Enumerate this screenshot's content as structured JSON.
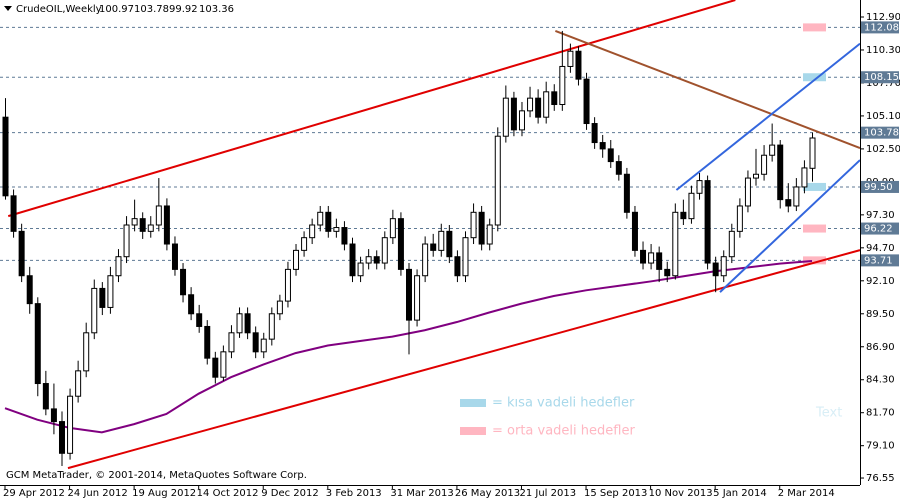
{
  "chart_data": {
    "type": "candlestick",
    "title": "CrudeOIL,Weekly",
    "footer": "GCM MetaTrader, © 2001-2014, MetaQuotes Software Corp.",
    "categories": [
      "29 Apr 2012",
      null,
      null,
      null,
      null,
      null,
      null,
      null,
      "24 Jun 2012",
      null,
      null,
      null,
      null,
      null,
      null,
      null,
      "19 Aug 2012",
      null,
      null,
      null,
      null,
      null,
      null,
      null,
      "14 Oct 2012",
      null,
      null,
      null,
      null,
      null,
      null,
      null,
      "9 Dec 2012",
      null,
      null,
      null,
      null,
      null,
      null,
      null,
      "3 Feb 2013",
      null,
      null,
      null,
      null,
      null,
      null,
      null,
      "31 Mar 2013",
      null,
      null,
      null,
      null,
      null,
      null,
      null,
      "26 May 2013",
      null,
      null,
      null,
      null,
      null,
      null,
      null,
      "21 Jul 2013",
      null,
      null,
      null,
      null,
      null,
      null,
      null,
      "15 Sep 2013",
      null,
      null,
      null,
      null,
      null,
      null,
      null,
      "10 Nov 2013",
      null,
      null,
      null,
      null,
      null,
      null,
      null,
      "5 Jan 2014",
      null,
      null,
      null,
      null,
      null,
      null,
      null,
      "2 Mar 2014",
      null,
      null,
      null,
      null
    ],
    "open": [
      105.0,
      98.8,
      96.0,
      92.5,
      90.3,
      84.0,
      82.0,
      81.0,
      78.5,
      83.0,
      85.0,
      88.0,
      91.5,
      90.0,
      92.5,
      94.0,
      96.5,
      97.0,
      96.0,
      96.5,
      98.0,
      95.0,
      93.0,
      91.0,
      89.5,
      88.5,
      86.0,
      84.5,
      86.5,
      88.0,
      89.5,
      88.0,
      86.5,
      87.5,
      89.5,
      90.5,
      93.0,
      94.5,
      95.5,
      96.5,
      97.5,
      96.0,
      96.3,
      95.0,
      92.5,
      93.5,
      94.0,
      93.5,
      95.5,
      97.0,
      93.0,
      89.0,
      92.5,
      95.0,
      94.5,
      96.0,
      94.0,
      92.5,
      95.5,
      97.5,
      95.0,
      96.5,
      103.5,
      106.5,
      104.0,
      105.5,
      106.5,
      105.0,
      107.0,
      106.0,
      109.0,
      110.2,
      108.0,
      104.5,
      103.0,
      102.5,
      101.5,
      100.5,
      97.5,
      94.5,
      93.5,
      94.3,
      93.0,
      92.5,
      97.5,
      97.0,
      99.0,
      100.0,
      93.5,
      92.5,
      94.0,
      96.0,
      98.0,
      100.2,
      100.5,
      102.0,
      102.8,
      98.5,
      98.0,
      99.5,
      100.97
    ],
    "high": [
      106.5,
      99.3,
      96.6,
      93.2,
      90.8,
      85.0,
      84.0,
      81.8,
      83.6,
      85.8,
      88.8,
      92.2,
      92.0,
      93.2,
      94.6,
      97.2,
      98.5,
      97.5,
      97.2,
      100.2,
      98.6,
      95.6,
      93.5,
      91.6,
      90.2,
      89.0,
      86.5,
      87.0,
      88.6,
      90.0,
      90.0,
      88.5,
      88.0,
      90.0,
      91.0,
      93.6,
      95.0,
      96.0,
      97.0,
      98.0,
      98.0,
      97.0,
      96.8,
      95.5,
      94.0,
      94.6,
      94.5,
      96.0,
      97.7,
      97.5,
      93.5,
      93.0,
      95.6,
      95.8,
      96.6,
      96.5,
      94.5,
      96.0,
      98.2,
      98.0,
      97.0,
      104.2,
      107.5,
      107.0,
      106.2,
      107.4,
      107.2,
      107.8,
      107.6,
      111.8,
      110.8,
      110.6,
      108.5,
      105.0,
      103.6,
      103.2,
      102.0,
      101.0,
      98.0,
      95.2,
      95.0,
      94.8,
      93.6,
      98.2,
      98.5,
      99.6,
      100.6,
      100.4,
      94.0,
      94.5,
      96.6,
      98.6,
      100.8,
      102.5,
      102.8,
      104.5,
      103.2,
      99.8,
      100.2,
      101.6,
      103.78
    ],
    "low": [
      98.5,
      95.5,
      92.0,
      89.5,
      83.0,
      81.5,
      80.0,
      77.5,
      78.0,
      82.5,
      84.5,
      87.5,
      89.4,
      89.5,
      92.0,
      93.5,
      96.0,
      95.4,
      95.5,
      96.0,
      94.5,
      92.5,
      90.4,
      89.0,
      88.0,
      85.5,
      84.0,
      84.2,
      86.0,
      87.6,
      87.5,
      86.0,
      86.0,
      87.0,
      89.0,
      90.0,
      92.5,
      94.0,
      95.0,
      96.0,
      95.5,
      95.5,
      94.5,
      92.0,
      92.0,
      93.0,
      93.0,
      93.0,
      95.0,
      92.5,
      86.3,
      88.5,
      92.0,
      94.0,
      94.0,
      93.5,
      92.0,
      92.0,
      95.0,
      94.5,
      94.5,
      96.0,
      103.0,
      103.5,
      103.5,
      105.0,
      104.5,
      104.5,
      105.5,
      105.5,
      108.5,
      107.5,
      104.0,
      102.5,
      101.8,
      101.0,
      100.0,
      97.0,
      94.0,
      93.0,
      93.0,
      92.0,
      92.0,
      92.2,
      96.5,
      96.6,
      98.5,
      93.0,
      91.2,
      92.0,
      93.5,
      95.5,
      97.5,
      99.6,
      100.0,
      101.5,
      97.8,
      97.5,
      97.6,
      99.0,
      99.92
    ],
    "close": [
      98.8,
      96.0,
      92.5,
      90.3,
      84.0,
      82.0,
      81.0,
      78.5,
      83.0,
      85.0,
      88.0,
      91.5,
      90.0,
      92.5,
      94.0,
      96.5,
      97.0,
      96.0,
      96.5,
      98.0,
      95.0,
      93.0,
      91.0,
      89.5,
      88.5,
      86.0,
      84.5,
      86.5,
      88.0,
      89.5,
      88.0,
      86.5,
      87.5,
      89.5,
      90.5,
      93.0,
      94.5,
      95.5,
      96.5,
      97.5,
      96.0,
      96.3,
      95.0,
      92.5,
      93.5,
      94.0,
      93.5,
      95.5,
      97.0,
      93.0,
      89.0,
      92.5,
      95.0,
      94.5,
      96.0,
      94.0,
      92.5,
      95.5,
      97.5,
      95.0,
      96.5,
      103.5,
      106.5,
      104.0,
      105.5,
      106.5,
      105.0,
      107.0,
      106.0,
      109.0,
      110.2,
      108.0,
      104.5,
      103.0,
      102.5,
      101.5,
      100.5,
      97.5,
      94.5,
      93.5,
      94.3,
      93.0,
      92.5,
      97.5,
      97.0,
      99.0,
      100.0,
      93.5,
      92.5,
      94.0,
      96.0,
      98.0,
      100.2,
      100.5,
      102.0,
      102.8,
      98.5,
      98.0,
      99.5,
      101.0,
      103.36
    ],
    "ylim": [
      76.0,
      114.24
    ],
    "yticks": [
      {
        "value": 112.9,
        "label": "112.90"
      },
      {
        "value": 110.3,
        "label": "110.30"
      },
      {
        "value": 107.7,
        "label": "107.70"
      },
      {
        "value": 105.1,
        "label": "105.10"
      },
      {
        "value": 102.5,
        "label": "102.50"
      },
      {
        "value": 99.9,
        "label": "99.90"
      },
      {
        "value": 97.3,
        "label": "97.30"
      },
      {
        "value": 94.7,
        "label": "94.70"
      },
      {
        "value": 92.1,
        "label": "92.10"
      },
      {
        "value": 89.5,
        "label": "89.50"
      },
      {
        "value": 86.9,
        "label": "86.90"
      },
      {
        "value": 84.3,
        "label": "84.30"
      },
      {
        "value": 81.7,
        "label": "81.70"
      },
      {
        "value": 79.1,
        "label": "79.10"
      },
      76.55
    ],
    "moving_average": {
      "color": "#800080",
      "x": [
        0,
        4,
        8,
        12,
        16,
        20,
        24,
        28,
        32,
        36,
        40,
        44,
        48,
        52,
        56,
        60,
        64,
        68,
        72,
        76,
        80,
        84,
        88,
        92,
        96,
        100
      ],
      "values": [
        82.06,
        81.15,
        80.5,
        80.15,
        80.8,
        81.6,
        83.2,
        84.5,
        85.5,
        86.4,
        87.0,
        87.35,
        87.7,
        88.2,
        88.85,
        89.6,
        90.3,
        90.9,
        91.35,
        91.7,
        92.05,
        92.45,
        92.85,
        93.15,
        93.45,
        93.66
      ]
    },
    "levels": [
      {
        "value": 112.08,
        "label": "112.08",
        "color": "#ffb6c1"
      },
      {
        "value": 108.15,
        "label": "108.15",
        "color": "#a8d8ea"
      },
      {
        "value": 103.78,
        "label": "103.78",
        "color": null
      },
      {
        "value": 99.5,
        "label": "99.50",
        "color": "#a8d8ea"
      },
      {
        "value": 96.22,
        "label": "96.22",
        "color": "#ffb6c1"
      },
      {
        "value": 93.71,
        "label": "93.71",
        "color": "#ffb6c1"
      }
    ],
    "trend_lines": [
      {
        "color": "#e00000",
        "x": [
          0.4,
          90.5
        ],
        "y": [
          97.2,
          114.24
        ]
      },
      {
        "color": "#e00000",
        "x": [
          7.8,
          105.95
        ],
        "y": [
          77.33,
          94.52
        ]
      },
      {
        "color": "#a0522d",
        "x": [
          68.2,
          105.95
        ],
        "y": [
          111.8,
          102.57
        ]
      },
      {
        "color": "#3366dd",
        "x": [
          83.2,
          105.95
        ],
        "y": [
          99.26,
          110.8
        ]
      },
      {
        "color": "#3366dd",
        "x": [
          88.6,
          105.95
        ],
        "y": [
          91.21,
          101.62
        ]
      }
    ],
    "legend": [
      {
        "label": "= kısa vadeli hedefler",
        "color": "#a8d8ea"
      },
      {
        "label": "= orta vadeli hedefler",
        "color": "#ffb6c1"
      }
    ],
    "annotation": "Text"
  }
}
